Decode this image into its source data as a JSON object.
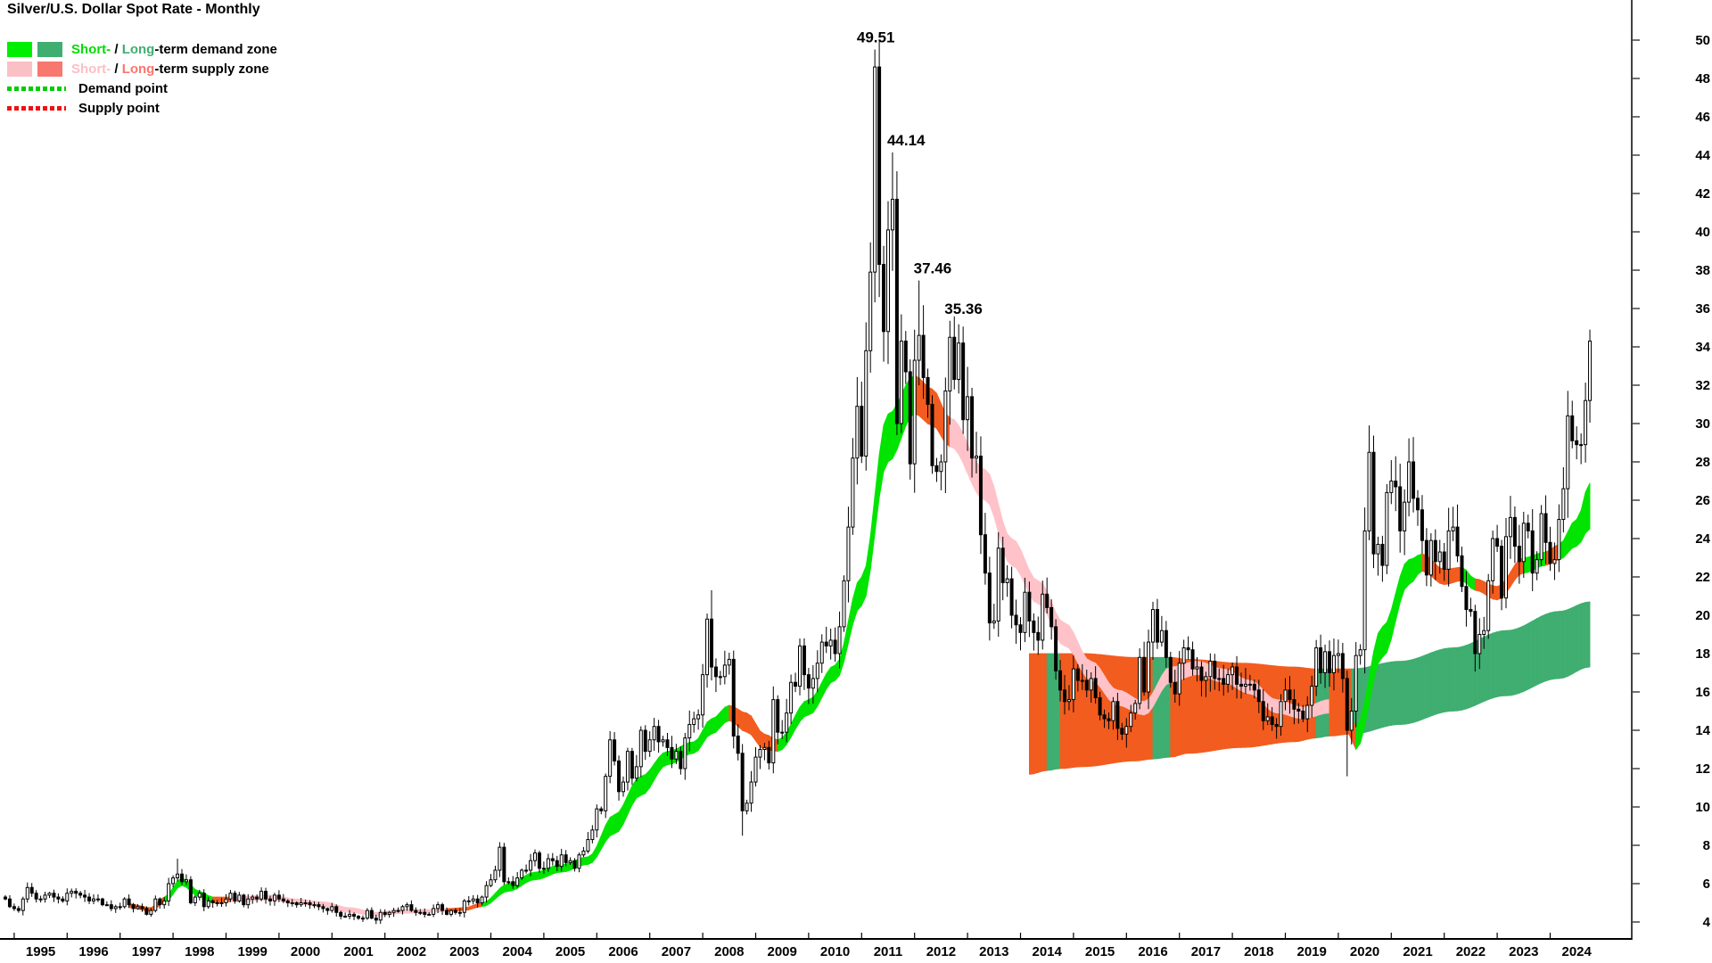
{
  "title": "Silver/U.S. Dollar Spot Rate - Monthly",
  "legend": {
    "demand_zone": {
      "short_label": "Short-",
      "sep": " / ",
      "long_label": "Long",
      "suffix": "-term demand zone",
      "short_color": "#00EE00",
      "long_color": "#3FAE70"
    },
    "supply_zone": {
      "short_label": "Short-",
      "sep": " / ",
      "long_label": "Long",
      "suffix": "-term supply zone",
      "short_color": "#FAC0C5",
      "long_color": "#F8776E"
    },
    "demand_point": {
      "label": "Demand point",
      "color": "#00CC00"
    },
    "supply_point": {
      "label": "Supply point",
      "color": "#EE1111"
    }
  },
  "chart_data": {
    "type": "candlestick",
    "title": "Silver/U.S. Dollar Spot Rate - Monthly",
    "x_start": "1994-11",
    "x_years": [
      1995,
      1996,
      1997,
      1998,
      1999,
      2000,
      2001,
      2002,
      2003,
      2004,
      2005,
      2006,
      2007,
      2008,
      2009,
      2010,
      2011,
      2012,
      2013,
      2014,
      2015,
      2016,
      2017,
      2018,
      2019,
      2020,
      2021,
      2022,
      2023,
      2024
    ],
    "y_ticks": [
      4,
      6,
      8,
      10,
      12,
      14,
      16,
      18,
      20,
      22,
      24,
      26,
      28,
      30,
      32,
      34,
      36,
      38,
      40,
      42,
      44,
      46,
      48,
      50
    ],
    "y_range": [
      4,
      50
    ],
    "monthly_closes": [
      5.2,
      4.8,
      4.7,
      4.6,
      5.2,
      5.8,
      5.5,
      5.2,
      5.2,
      5.4,
      5.5,
      5.3,
      5.2,
      5.1,
      5.5,
      5.6,
      5.5,
      5.4,
      5.3,
      5.1,
      5.2,
      5.2,
      4.9,
      4.9,
      4.7,
      4.8,
      4.8,
      5.2,
      4.9,
      4.7,
      4.8,
      4.7,
      4.4,
      4.6,
      5.2,
      4.9,
      5.1,
      6.0,
      6.3,
      6.5,
      6.1,
      6.2,
      5.0,
      5.3,
      5.5,
      4.8,
      5.1,
      5.0,
      5.0,
      5.0,
      5.2,
      5.5,
      5.1,
      5.4,
      4.9,
      5.2,
      5.3,
      5.2,
      5.6,
      5.2,
      5.1,
      5.4,
      5.2,
      5.1,
      5.0,
      5.0,
      4.9,
      5.0,
      5.0,
      4.9,
      4.9,
      4.8,
      4.7,
      4.6,
      4.8,
      4.5,
      4.3,
      4.3,
      4.4,
      4.3,
      4.2,
      4.2,
      4.6,
      4.2,
      4.1,
      4.5,
      4.4,
      4.5,
      4.6,
      4.6,
      4.8,
      4.9,
      4.6,
      4.5,
      4.5,
      4.4,
      4.4,
      4.7,
      4.9,
      4.6,
      4.4,
      4.6,
      4.5,
      4.5,
      5.1,
      5.1,
      5.2,
      5.0,
      5.3,
      5.9,
      6.2,
      6.7,
      7.9,
      6.1,
      6.1,
      5.9,
      6.3,
      6.7,
      6.7,
      7.2,
      7.6,
      6.8,
      6.8,
      7.3,
      7.2,
      6.9,
      7.5,
      7.1,
      7.2,
      6.8,
      7.5,
      7.7,
      8.3,
      8.8,
      9.9,
      9.8,
      11.6,
      13.5,
      12.4,
      10.8,
      11.3,
      12.9,
      11.5,
      12.1,
      14.0,
      12.9,
      13.5,
      14.2,
      13.4,
      13.5,
      13.1,
      12.5,
      12.9,
      12.0,
      13.6,
      14.3,
      14.6,
      14.8,
      16.9,
      19.8,
      17.3,
      16.8,
      16.8,
      17.4,
      17.7,
      13.7,
      12.8,
      9.8,
      10.2,
      11.3,
      12.6,
      13.0,
      13.1,
      12.3,
      15.6,
      13.9,
      13.9,
      14.9,
      16.5,
      16.3,
      18.4,
      16.9,
      16.2,
      16.7,
      17.5,
      18.6,
      18.4,
      18.7,
      18.0,
      19.4,
      21.8,
      24.6,
      28.2,
      30.9,
      28.3,
      33.8,
      37.9,
      48.6,
      38.3,
      34.8,
      40.1,
      41.7,
      30.0,
      34.3,
      32.7,
      27.9,
      33.3,
      34.6,
      32.4,
      31.0,
      27.8,
      27.5,
      28.0,
      31.7,
      34.5,
      32.3,
      34.2,
      30.2,
      31.4,
      28.2,
      28.3,
      24.2,
      22.2,
      19.6,
      19.7,
      23.5,
      21.7,
      21.9,
      20.0,
      19.5,
      19.1,
      21.2,
      19.7,
      19.1,
      18.7,
      21.1,
      20.4,
      19.4,
      17.1,
      16.1,
      15.5,
      15.6,
      17.2,
      16.6,
      16.6,
      16.1,
      16.7,
      15.7,
      14.8,
      14.6,
      14.5,
      15.5,
      14.1,
      13.8,
      14.2,
      14.9,
      15.4,
      17.8,
      16.0,
      18.6,
      20.3,
      18.6,
      19.2,
      17.8,
      16.5,
      15.9,
      17.5,
      18.3,
      18.2,
      17.2,
      17.3,
      16.6,
      16.8,
      17.6,
      16.7,
      16.7,
      16.4,
      16.9,
      17.3,
      16.4,
      16.3,
      16.4,
      16.4,
      16.1,
      15.5,
      14.5,
      14.7,
      14.3,
      14.2,
      15.5,
      16.1,
      15.6,
      15.1,
      15.0,
      14.6,
      15.3,
      16.3,
      18.3,
      17.0,
      18.1,
      17.0,
      17.9,
      18.0,
      16.7,
      14.0,
      15.0,
      17.9,
      18.2,
      24.4,
      28.5,
      23.2,
      23.7,
      22.6,
      26.4,
      27.0,
      26.7,
      24.4,
      25.9,
      28.0,
      26.1,
      25.5,
      23.9,
      22.1,
      23.9,
      22.8,
      23.3,
      22.4,
      24.4,
      24.6,
      23.1,
      21.5,
      20.3,
      20.2,
      18.0,
      19.0,
      19.2,
      21.8,
      24.0,
      23.6,
      20.9,
      24.1,
      25.1,
      23.6,
      22.8,
      24.8,
      24.4,
      22.2,
      22.9,
      25.3,
      23.8,
      22.7,
      22.9,
      25.0,
      26.6,
      30.4,
      29.1,
      28.9,
      28.9,
      31.2,
      34.3
    ],
    "extremes": {
      "39": {
        "high": 7.3
      },
      "160": {
        "high": 21.3
      },
      "167": {
        "low": 8.5
      },
      "197": {
        "high": 49.51
      },
      "201": {
        "high": 44.14
      },
      "207": {
        "high": 37.46
      },
      "214": {
        "high": 35.36
      },
      "304": {
        "low": 11.6
      },
      "309": {
        "high": 29.9
      },
      "359": {
        "high": 34.9
      }
    },
    "annotations": [
      {
        "label": "49.51",
        "month_index": 197,
        "anchor": "middle"
      },
      {
        "label": "44.14",
        "month_index": 201,
        "anchor": "start"
      },
      {
        "label": "37.46",
        "month_index": 207,
        "anchor": "start"
      },
      {
        "label": "35.36",
        "month_index": 214,
        "anchor": "start"
      }
    ],
    "short_term_band": [
      [
        28,
        4.95,
        4.75,
        "o"
      ],
      [
        33,
        4.75,
        4.55,
        "o"
      ],
      [
        36,
        5.3,
        5.0,
        "g"
      ],
      [
        40,
        6.3,
        5.9,
        "g"
      ],
      [
        44,
        5.6,
        5.3,
        "g"
      ],
      [
        47,
        5.3,
        5.0,
        "o"
      ],
      [
        51,
        5.3,
        5.05,
        "p"
      ],
      [
        60,
        5.4,
        5.15,
        "p"
      ],
      [
        66,
        5.2,
        4.95,
        "p"
      ],
      [
        72,
        5.05,
        4.8,
        "p"
      ],
      [
        78,
        4.75,
        4.5,
        "p"
      ],
      [
        84,
        4.5,
        4.3,
        "p"
      ],
      [
        90,
        4.65,
        4.45,
        "p"
      ],
      [
        96,
        4.65,
        4.5,
        "p"
      ],
      [
        100,
        4.7,
        4.55,
        "o"
      ],
      [
        104,
        4.75,
        4.6,
        "o"
      ],
      [
        108,
        5.0,
        4.8,
        "g"
      ],
      [
        114,
        6.0,
        5.6,
        "g"
      ],
      [
        120,
        6.6,
        6.2,
        "g"
      ],
      [
        126,
        7.0,
        6.6,
        "g"
      ],
      [
        132,
        7.4,
        7.0,
        "g"
      ],
      [
        138,
        9.6,
        8.6,
        "g"
      ],
      [
        144,
        11.6,
        10.6,
        "g"
      ],
      [
        150,
        12.9,
        12.2,
        "g"
      ],
      [
        156,
        13.4,
        12.8,
        "g"
      ],
      [
        160,
        14.6,
        13.8,
        "g"
      ],
      [
        164,
        15.3,
        14.5,
        "o"
      ],
      [
        168,
        14.9,
        13.9,
        "o"
      ],
      [
        172,
        13.8,
        13.0,
        "o"
      ],
      [
        175,
        13.5,
        12.9,
        "g"
      ],
      [
        182,
        15.6,
        14.8,
        "g"
      ],
      [
        188,
        17.4,
        16.6,
        "g"
      ],
      [
        194,
        22.0,
        20.5,
        "g"
      ],
      [
        200,
        30.5,
        28.0,
        "g"
      ],
      [
        206,
        32.5,
        30.5,
        "o"
      ],
      [
        210,
        31.8,
        29.9,
        "o"
      ],
      [
        214,
        30.3,
        28.8,
        "p"
      ],
      [
        222,
        27.6,
        26.0,
        "p"
      ],
      [
        228,
        24.0,
        22.6,
        "p"
      ],
      [
        234,
        21.8,
        20.6,
        "p"
      ],
      [
        240,
        19.6,
        18.4,
        "p"
      ],
      [
        246,
        17.6,
        16.6,
        "p"
      ],
      [
        252,
        16.1,
        15.3,
        "p"
      ],
      [
        258,
        15.5,
        14.8,
        "p"
      ],
      [
        264,
        17.3,
        16.5,
        "p"
      ],
      [
        270,
        17.6,
        16.9,
        "p"
      ],
      [
        276,
        17.2,
        16.5,
        "p"
      ],
      [
        282,
        16.6,
        15.9,
        "p"
      ],
      [
        288,
        15.6,
        14.9,
        "p"
      ],
      [
        294,
        15.2,
        14.6,
        "p"
      ],
      [
        300,
        15.6,
        14.9,
        "o"
      ],
      [
        304,
        14.9,
        14.0,
        "o"
      ],
      [
        306,
        14.2,
        13.0,
        "g"
      ],
      [
        312,
        19.4,
        17.8,
        "g"
      ],
      [
        318,
        22.9,
        21.6,
        "g"
      ],
      [
        321,
        23.2,
        22.3,
        "o"
      ],
      [
        326,
        22.4,
        21.6,
        "o"
      ],
      [
        330,
        22.5,
        21.8,
        "g"
      ],
      [
        333,
        21.9,
        21.3,
        "o"
      ],
      [
        338,
        21.5,
        20.8,
        "o"
      ],
      [
        344,
        23.0,
        22.2,
        "g"
      ],
      [
        349,
        23.3,
        22.6,
        "o"
      ],
      [
        352,
        23.7,
        22.9,
        "g"
      ],
      [
        356,
        25.0,
        23.6,
        "g"
      ],
      [
        359,
        26.9,
        24.5,
        "g"
      ]
    ],
    "long_term_band": [
      [
        232,
        18.0,
        11.7,
        "o"
      ],
      [
        236,
        18.0,
        11.9,
        "s"
      ],
      [
        239,
        18.0,
        12.0,
        "o"
      ],
      [
        244,
        18.0,
        12.1,
        "o"
      ],
      [
        256,
        17.8,
        12.4,
        "o"
      ],
      [
        260,
        17.8,
        12.5,
        "s"
      ],
      [
        264,
        17.8,
        12.6,
        "o"
      ],
      [
        268,
        17.7,
        12.8,
        "o"
      ],
      [
        280,
        17.5,
        13.1,
        "o"
      ],
      [
        292,
        17.3,
        13.4,
        "o"
      ],
      [
        297,
        17.2,
        13.6,
        "s"
      ],
      [
        300,
        17.2,
        13.7,
        "o"
      ],
      [
        305,
        17.2,
        13.8,
        "s"
      ],
      [
        316,
        17.6,
        14.3,
        "s"
      ],
      [
        328,
        18.3,
        15.0,
        "s"
      ],
      [
        340,
        19.2,
        15.8,
        "s"
      ],
      [
        352,
        20.2,
        16.7,
        "s"
      ],
      [
        359,
        20.7,
        17.3,
        "s"
      ]
    ],
    "colors": {
      "short_demand": "#00E400",
      "short_supply_pink": "#FFC2C8",
      "supply_orange": "#F25C1F",
      "long_demand": "#3FAE70",
      "candle_up": "#FFFFFF",
      "candle_down": "#000000",
      "outline": "#000000"
    },
    "legend_position": "top-left",
    "grid": false
  }
}
